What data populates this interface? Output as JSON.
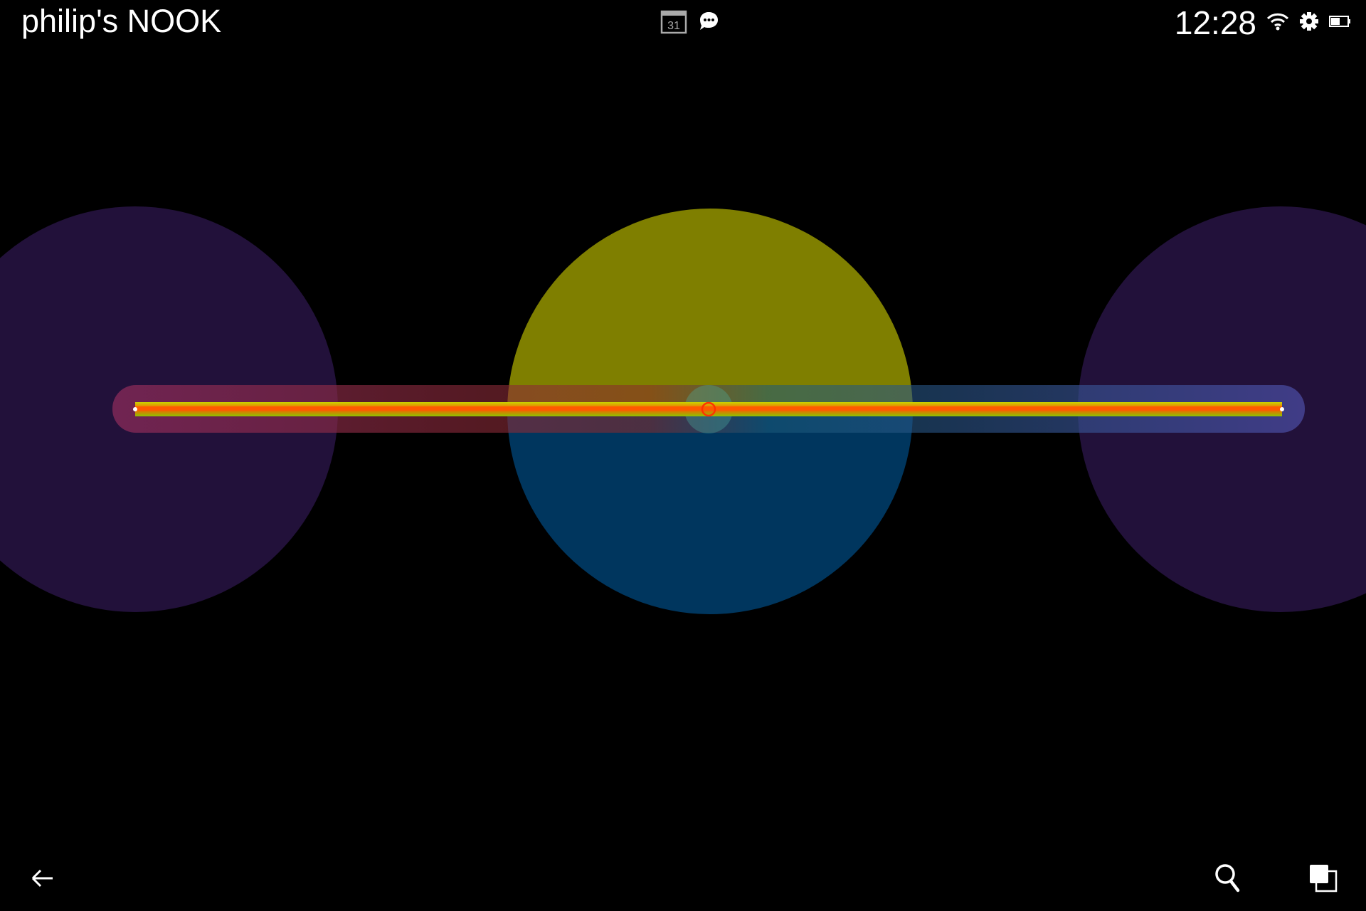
{
  "status_bar": {
    "device_name": "philip's NOOK",
    "calendar_day": "31",
    "clock": "12:28"
  },
  "canvas": {
    "colors": {
      "left_circle": "#22113a",
      "right_circle": "#22113a",
      "center_top": "#7f7f00",
      "center_bottom": "#00365e",
      "line_core": "#ff5a00",
      "line_glow": "#b8d400",
      "band_left": "#7a2a4a",
      "band_right": "#3a4a8a",
      "marker": "#ff3300"
    }
  },
  "nav_bar": {
    "icons": [
      "back-arrow-icon",
      "search-icon",
      "recent-apps-icon"
    ]
  }
}
